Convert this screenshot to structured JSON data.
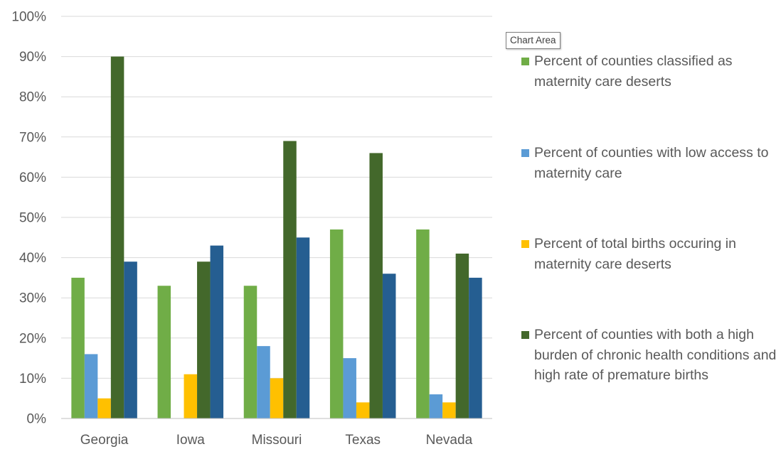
{
  "tooltip": "Chart Area",
  "chart_data": {
    "type": "bar",
    "categories": [
      "Georgia",
      "Iowa",
      "Missouri",
      "Texas",
      "Nevada"
    ],
    "series": [
      {
        "name": "Percent of counties classified as maternity care deserts",
        "color": "#70ad47",
        "values": [
          35,
          33,
          33,
          47,
          47
        ]
      },
      {
        "name": "Percent of counties with low access to maternity care",
        "color": "#5b9bd5",
        "values": [
          16,
          0,
          18,
          15,
          6
        ]
      },
      {
        "name": "Percent of total births occuring in maternity care deserts",
        "color": "#ffc000",
        "values": [
          5,
          11,
          10,
          4,
          4
        ]
      },
      {
        "name": "Percent of counties with both a high burden of chronic health conditions and high rate of premature births",
        "color": "#43682b",
        "values": [
          90,
          39,
          69,
          66,
          41
        ]
      },
      {
        "name": null,
        "color": "#255e91",
        "values": [
          39,
          43,
          45,
          36,
          35
        ]
      }
    ],
    "y_ticks": [
      "0%",
      "10%",
      "20%",
      "30%",
      "40%",
      "50%",
      "60%",
      "70%",
      "80%",
      "90%",
      "100%"
    ],
    "ylim": [
      0,
      100
    ],
    "grid": true,
    "legend_position": "right"
  }
}
